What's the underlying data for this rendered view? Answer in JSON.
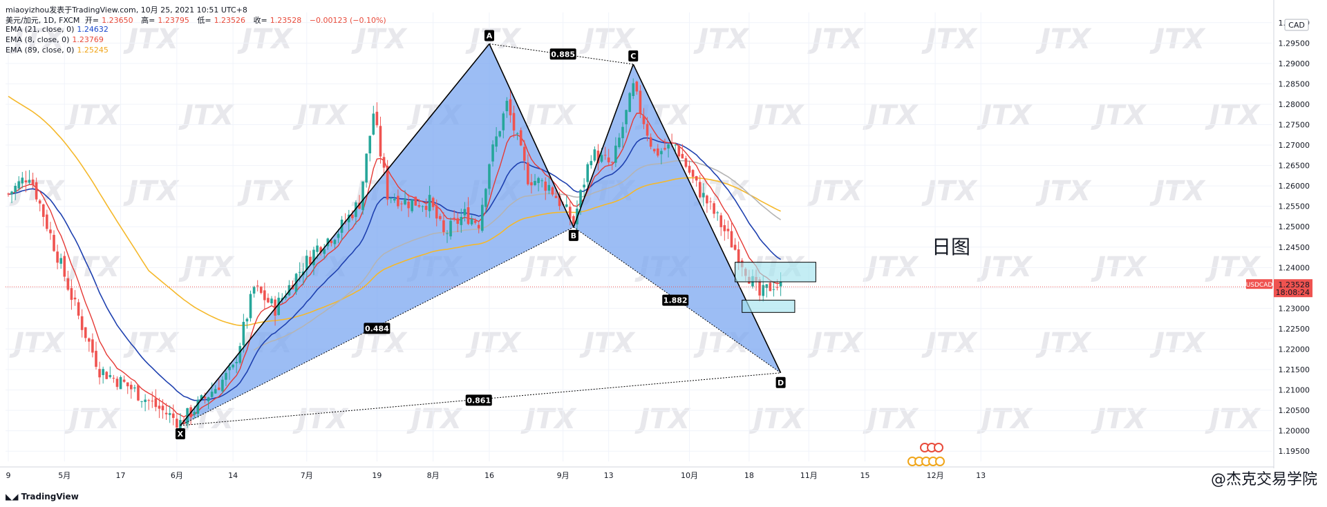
{
  "header": {
    "line1": "miaoyizhou发表于TradingView.com, 10月 25, 2021 10:51 UTC+8",
    "symbol": "美元/加元, 1D, FXCM",
    "open_label": "开=",
    "open": "1.23650",
    "high_label": "高=",
    "high": "1.23795",
    "low_label": "低=",
    "low": "1.23526",
    "close_label": "收=",
    "close": "1.23528",
    "change": "−0.00123 (−0.10%)",
    "ema21_label": "EMA (21, close, 0)",
    "ema21": "1.24632",
    "ema8_label": "EMA (8, close, 0)",
    "ema8": "1.23769",
    "ema89_label": "EMA (89, close, 0)",
    "ema89": "1.25245"
  },
  "footer": {
    "brand": "TradingView",
    "credit": "@杰克交易学院"
  },
  "annotation": {
    "day_label": "日图"
  },
  "price_tag": {
    "symbol": "USDCAD",
    "price": "1.23528",
    "countdown": "18:08:24"
  },
  "currency": "CAD",
  "watermark": "JTX",
  "colors": {
    "up": "#26a69a",
    "down": "#ef5350",
    "ema8": "#e53935",
    "ema21": "#1e40af",
    "ema89": "#f5b82a",
    "ema_gray": "#b4b4b4",
    "pattern_fill": "#7ba7f0",
    "target_box": "#a4e3ee"
  },
  "chart_data": {
    "type": "candlestick",
    "ylim": [
      1.1925,
      1.3025
    ],
    "y_ticks": [
      "1.30000",
      "1.29500",
      "1.29000",
      "1.28500",
      "1.28000",
      "1.27500",
      "1.27000",
      "1.26500",
      "1.26000",
      "1.25500",
      "1.25000",
      "1.24500",
      "1.24000",
      "1.23500",
      "1.23000",
      "1.22500",
      "1.22000",
      "1.21500",
      "1.21000",
      "1.20500",
      "1.20000",
      "1.19500"
    ],
    "y_tick_values": [
      1.3,
      1.295,
      1.29,
      1.285,
      1.28,
      1.275,
      1.27,
      1.265,
      1.26,
      1.255,
      1.25,
      1.245,
      1.24,
      1.235,
      1.23,
      1.225,
      1.22,
      1.215,
      1.21,
      1.205,
      1.2,
      1.195
    ],
    "x_ticks": [
      {
        "label": "9",
        "bar": 0
      },
      {
        "label": "5月",
        "bar": 16
      },
      {
        "label": "17",
        "bar": 32
      },
      {
        "label": "6月",
        "bar": 48
      },
      {
        "label": "14",
        "bar": 64
      },
      {
        "label": "7月",
        "bar": 85
      },
      {
        "label": "19",
        "bar": 105
      },
      {
        "label": "8月",
        "bar": 121
      },
      {
        "label": "16",
        "bar": 137
      },
      {
        "label": "9月",
        "bar": 158
      },
      {
        "label": "13",
        "bar": 171
      },
      {
        "label": "10月",
        "bar": 194
      },
      {
        "label": "18",
        "bar": 211
      },
      {
        "label": "11月",
        "bar": 228
      },
      {
        "label": "15",
        "bar": 244
      },
      {
        "label": "12月",
        "bar": 264
      },
      {
        "label": "13",
        "bar": 277
      }
    ],
    "harmonic_points": [
      {
        "label": "X",
        "bar": 49,
        "price": 1.2013
      },
      {
        "label": "A",
        "bar": 137,
        "price": 1.2948
      },
      {
        "label": "B",
        "bar": 161,
        "price": 1.2499
      },
      {
        "label": "C",
        "bar": 178,
        "price": 1.2898
      },
      {
        "label": "D",
        "bar": 220,
        "price": 1.2142
      }
    ],
    "ratios": [
      {
        "label": "0.885",
        "bar": 158,
        "price": 1.2923
      },
      {
        "label": "0.484",
        "bar": 105,
        "price": 1.2251
      },
      {
        "label": "1.882",
        "bar": 190,
        "price": 1.232
      },
      {
        "label": "0.861",
        "bar": 134,
        "price": 1.2075
      }
    ],
    "target_boxes": [
      {
        "bar_start": 207,
        "bar_end": 230,
        "top": 1.2413,
        "bottom": 1.2365
      },
      {
        "bar_start": 209,
        "bar_end": 224,
        "top": 1.232,
        "bottom": 1.229
      }
    ],
    "current_price": 1.23528,
    "bar_count": 221
  }
}
